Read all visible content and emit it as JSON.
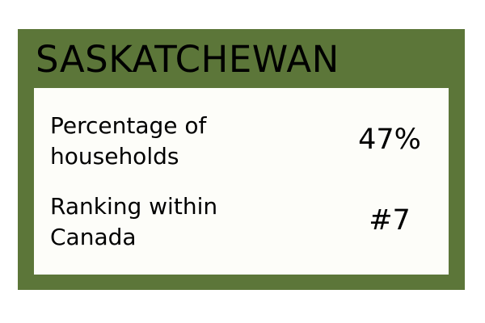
{
  "card": {
    "title": "SASKATCHEWAN",
    "accent_color": "#5c7639",
    "panel_color": "#fdfdf9"
  },
  "stats": [
    {
      "label": "Percentage of households",
      "value": "47%"
    },
    {
      "label": "Ranking within Canada",
      "value": "#7"
    }
  ]
}
